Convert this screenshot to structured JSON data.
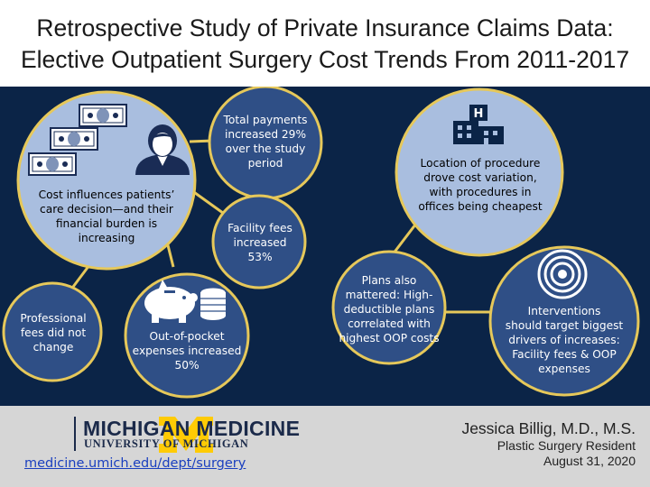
{
  "title": {
    "line1": "Retrospective Study of Private Insurance Claims Data:",
    "line2": "Elective Outpatient Surgery Cost Trends From 2011-2017"
  },
  "nodes": {
    "main": [
      "Cost influences patients’",
      "care decision—and their",
      "financial burden is",
      "increasing"
    ],
    "total": [
      "Total payments",
      "increased 29%",
      "over the study",
      "period"
    ],
    "facility": [
      "Facility fees",
      "increased",
      "53%"
    ],
    "professional": [
      "Professional",
      "fees did not",
      "change"
    ],
    "oop": [
      "Out-of-pocket",
      "expenses increased",
      "50%"
    ],
    "location": [
      "Location of procedure",
      "drove cost variation,",
      "with procedures in",
      "offices being cheapest"
    ],
    "plans": [
      "Plans also",
      "mattered: High-",
      "deductible plans",
      "correlated with",
      "highest OOP costs"
    ],
    "interventions": [
      "Interventions",
      "should target biggest",
      "drivers of increases:",
      "Facility fees & OOP",
      "expenses"
    ]
  },
  "icons": {
    "hospital_letter": "H"
  },
  "colors": {
    "panel": "#0b2447",
    "light_circle": "#a9bedf",
    "dark_circle": "#2f4f86",
    "connector": "#e6c85a",
    "maize": "#ffcb05",
    "navy": "#1b2a4a"
  },
  "footer": {
    "brand": "MICHIGAN MEDICINE",
    "university": "UNIVERSITY OF MICHIGAN",
    "url": "medicine.umich.edu/dept/surgery",
    "author_name": "Jessica Billig, M.D., M.S.",
    "author_role": "Plastic Surgery Resident",
    "date": "August 31, 2020"
  }
}
